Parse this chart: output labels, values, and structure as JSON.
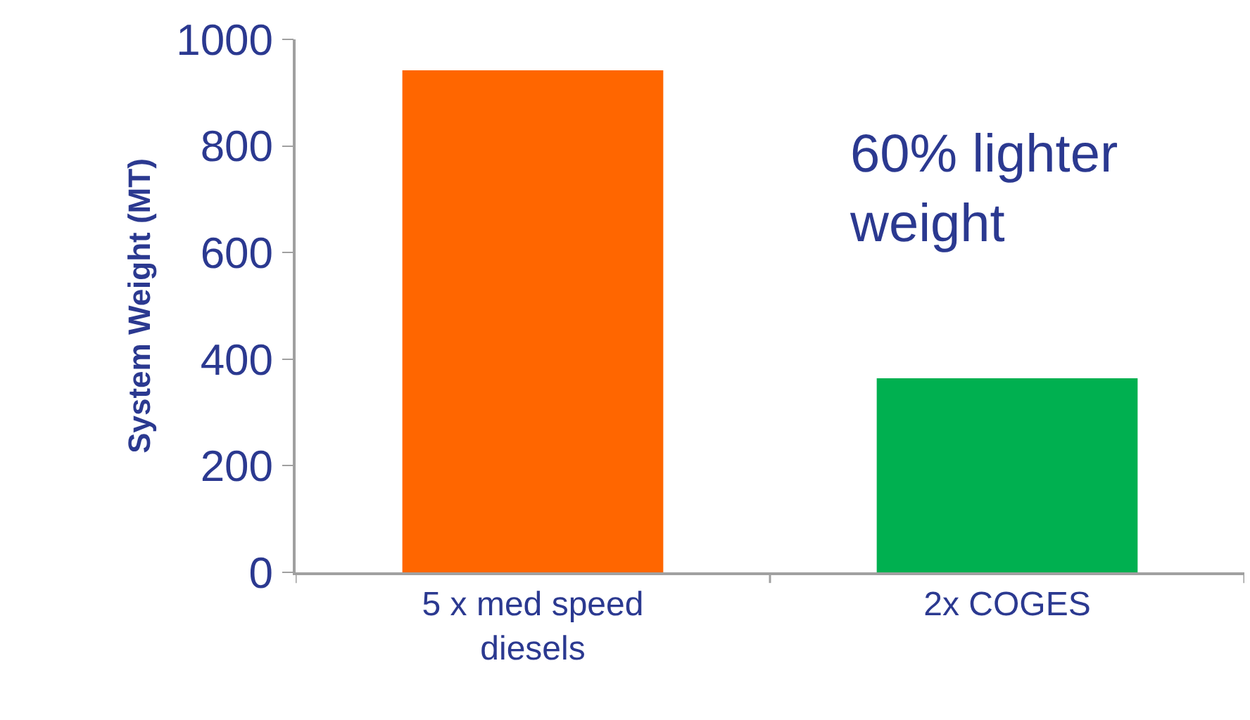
{
  "chart_data": {
    "type": "bar",
    "ylabel": "System Weight (MT)",
    "categories": [
      "5 x med speed diesels",
      "2x COGES"
    ],
    "values": [
      942,
      364
    ],
    "colors": [
      "#ff6600",
      "#00b050"
    ],
    "ylim": [
      0,
      1000
    ],
    "yticks": [
      0,
      200,
      400,
      600,
      800,
      1000
    ],
    "annotations": [
      "60% lighter weight"
    ]
  }
}
